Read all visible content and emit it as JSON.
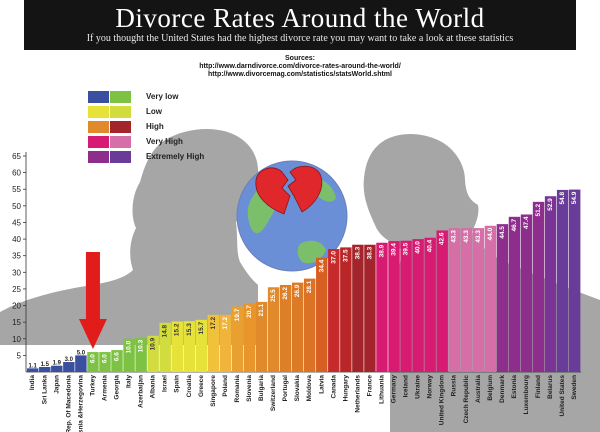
{
  "header": {
    "title": "Divorce Rates Around the World",
    "subtitle": "If you thought the United States had the highest divorce rate you may want to take a look at these statistics"
  },
  "sources": {
    "label": "Sources:",
    "urls": [
      "http://www.darndivorce.com/divorce-rates-around-the-world/",
      "http://www.divorcemag.com/statistics/statsWorld.shtml"
    ]
  },
  "legend": [
    {
      "label": "Very low",
      "colors": [
        "#3b4fa0",
        "#7dc242"
      ]
    },
    {
      "label": "Low",
      "colors": [
        "#e6e23a",
        "#d2dc3c"
      ]
    },
    {
      "label": "High",
      "colors": [
        "#e08a2b",
        "#a3242a"
      ]
    },
    {
      "label": "Very High",
      "colors": [
        "#d81b72",
        "#d66fa8"
      ]
    },
    {
      "label": "Extremely High",
      "colors": [
        "#8e2e8c",
        "#6a3c9a"
      ]
    }
  ],
  "chart_data": {
    "type": "bar",
    "ylim": [
      0,
      65
    ],
    "yticks": [
      5,
      10,
      15,
      20,
      25,
      30,
      35,
      40,
      45,
      50,
      55,
      60,
      65
    ],
    "categories": [
      "India",
      "Sri Lanka",
      "Japan",
      "Rep. Of Macedonia",
      "Bosnia &Herzegovina",
      "Turkey",
      "Armenia",
      "Georgia",
      "Italy",
      "Azerbaijan",
      "Albania",
      "Israel",
      "Spain",
      "Croatia",
      "Greece",
      "Singapore",
      "Poland",
      "Romania",
      "Slovenia",
      "Bulgaria",
      "Switzerland",
      "Portugal",
      "Slovakia",
      "Moldova",
      "Latvia",
      "Canada",
      "Hungary",
      "Netherlands",
      "France",
      "Lithuania",
      "Germany",
      "Iceland",
      "Ukraine",
      "Norway",
      "United Kingdom",
      "Russia",
      "Czech Republic",
      "Australia",
      "Belgium",
      "Denmark",
      "Estonia",
      "Luxembourg",
      "Finland",
      "Belarus",
      "United States",
      "Sweden"
    ],
    "values": [
      1.1,
      1.5,
      1.9,
      3.0,
      5.0,
      6.0,
      6.0,
      6.6,
      10.0,
      10.3,
      10.9,
      14.8,
      15.2,
      15.3,
      15.7,
      17.2,
      17.2,
      19.7,
      20.7,
      21.1,
      25.5,
      26.2,
      26.9,
      28.1,
      34.4,
      37.0,
      37.5,
      38.3,
      38.3,
      38.9,
      39.4,
      39.5,
      40.0,
      40.4,
      42.6,
      43.3,
      43.3,
      43.3,
      44.0,
      44.5,
      46.7,
      47.4,
      51.2,
      52.9,
      54.8,
      54.9
    ],
    "labels": [
      "1.1",
      "1.5",
      "1.9",
      "3.0",
      "5.0",
      "6.0",
      "6.0",
      "6.6",
      "10.0",
      "10.3",
      "10.9",
      "14.8",
      "15.2",
      "15.3",
      "15.7",
      "17.2",
      "17.2",
      "19.7",
      "20.7",
      "21.1",
      "25.5",
      "26.2",
      "26.9",
      "28.1",
      "34.4",
      "37.0",
      "37.5",
      "38.3",
      "38.3",
      "38.9",
      "39.4",
      "39.5",
      "40.0",
      "40.4",
      "42.6",
      "43.3",
      "43.3",
      "43.3",
      "44.0",
      "44.5",
      "46.7",
      "47.4",
      "51.2",
      "52.9",
      "54.8",
      "54.9"
    ],
    "colors": [
      "#3b4fa0",
      "#3b4fa0",
      "#3b4fa0",
      "#3b4fa0",
      "#3b4fa0",
      "#7dc242",
      "#7dc242",
      "#7dc242",
      "#7dc242",
      "#7dc242",
      "#d2dc3c",
      "#d2dc3c",
      "#e6e23a",
      "#e6e23a",
      "#e6e23a",
      "#f0c23a",
      "#f0b43a",
      "#e8a030",
      "#e8962c",
      "#e08a2b",
      "#e08a2b",
      "#dd7f28",
      "#dd7a28",
      "#db7224",
      "#d85f22",
      "#c62a2a",
      "#b82628",
      "#a3242a",
      "#a3242a",
      "#d81b72",
      "#d81b72",
      "#d81b72",
      "#d81b72",
      "#d81b72",
      "#d81b72",
      "#d66fa8",
      "#d66fa8",
      "#d66fa8",
      "#d66fa8",
      "#8e2e8c",
      "#8e2e8c",
      "#8e2e8c",
      "#8e2e8c",
      "#7a3496",
      "#6a3c9a",
      "#6a3c9a"
    ],
    "highlight": "Turkey"
  }
}
